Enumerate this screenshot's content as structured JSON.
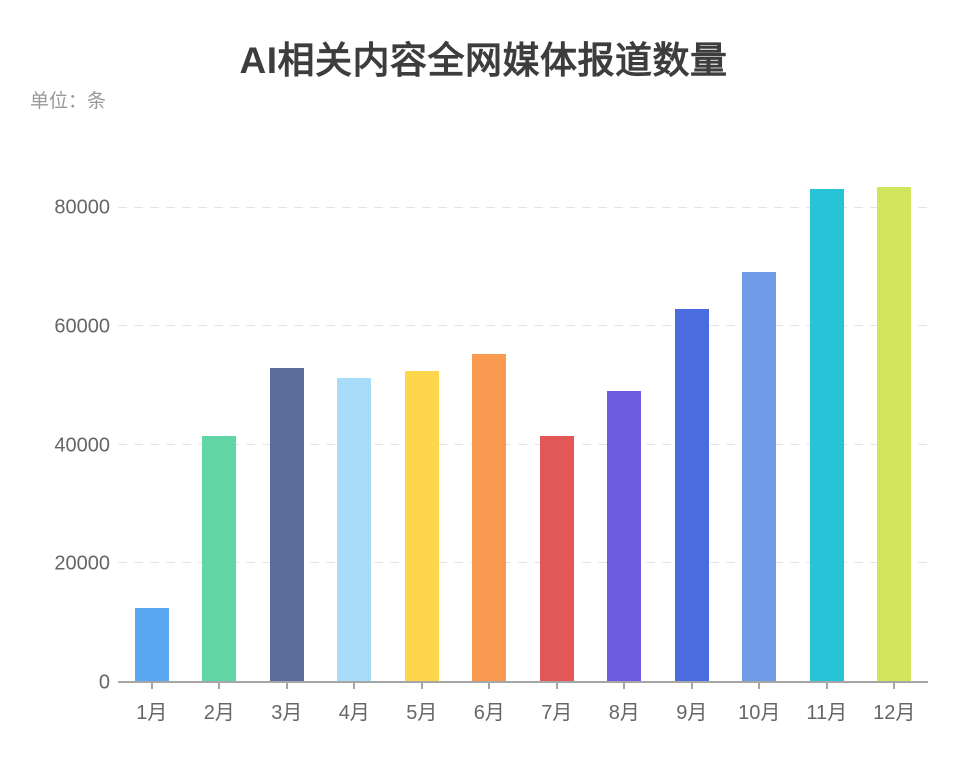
{
  "page": {
    "background": "#ffffff"
  },
  "header": {
    "title": "AI相关内容全网媒体报道数量",
    "unit_label": "单位：条"
  },
  "chart_data": {
    "type": "bar",
    "title": "AI相关内容全网媒体报道数量",
    "subtitle": "单位：条",
    "xlabel": "",
    "ylabel": "单位：条",
    "categories": [
      "1月",
      "2月",
      "3月",
      "4月",
      "5月",
      "6月",
      "7月",
      "8月",
      "9月",
      "10月",
      "11月",
      "12月"
    ],
    "values": [
      12300,
      41400,
      53000,
      51300,
      52500,
      55300,
      41400,
      49000,
      63000,
      69100,
      83200,
      83500
    ],
    "bar_colors": [
      "#58A9F2",
      "#61D5A4",
      "#5A6C9B",
      "#A8DCF8",
      "#FDD64B",
      "#FA9A50",
      "#E25757",
      "#6F5BDF",
      "#4A6CDE",
      "#6F9AE5",
      "#29C3D8",
      "#D2E55F"
    ],
    "yticks": [
      0,
      20000,
      40000,
      60000,
      80000
    ],
    "ylim": [
      0,
      86600
    ],
    "grid": "dashed-horizontal",
    "legend": "none",
    "colors": {
      "title_text": "#3D3D3D",
      "axis_label_text": "#666666",
      "unit_text": "#999999",
      "axis_line": "#A6A6A6",
      "gridline": "#E4E4E4"
    }
  }
}
